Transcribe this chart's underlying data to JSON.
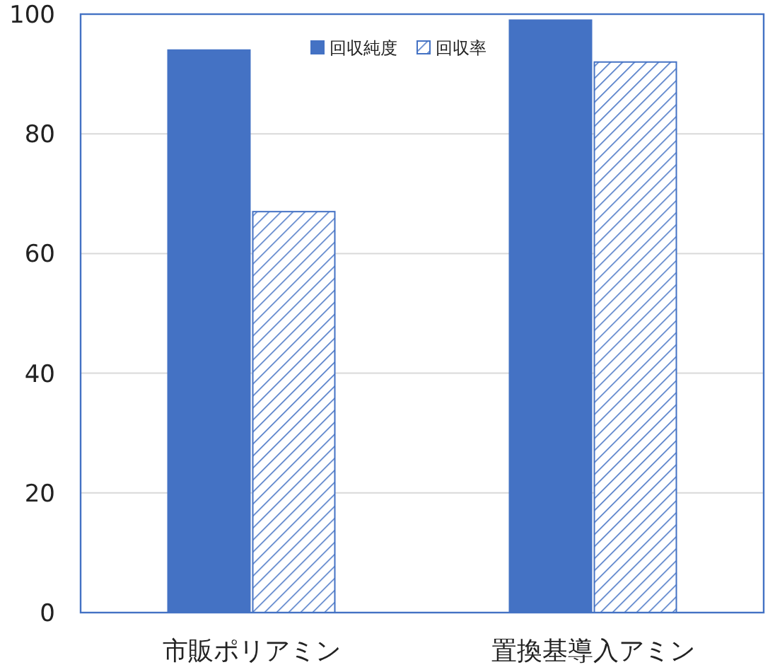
{
  "chart_data": {
    "type": "bar",
    "categories": [
      "市販ポリアミン",
      "置換基導入アミン"
    ],
    "series": [
      {
        "name": "回収純度",
        "color": "#4472c4",
        "values": [
          94,
          99
        ]
      },
      {
        "name": "回収率",
        "color": "#4472c4",
        "values": [
          67,
          92
        ]
      }
    ],
    "ylim": [
      0,
      100
    ],
    "yticks": [
      0,
      20,
      40,
      60,
      80,
      100
    ],
    "grid": "y",
    "legend": "top"
  }
}
